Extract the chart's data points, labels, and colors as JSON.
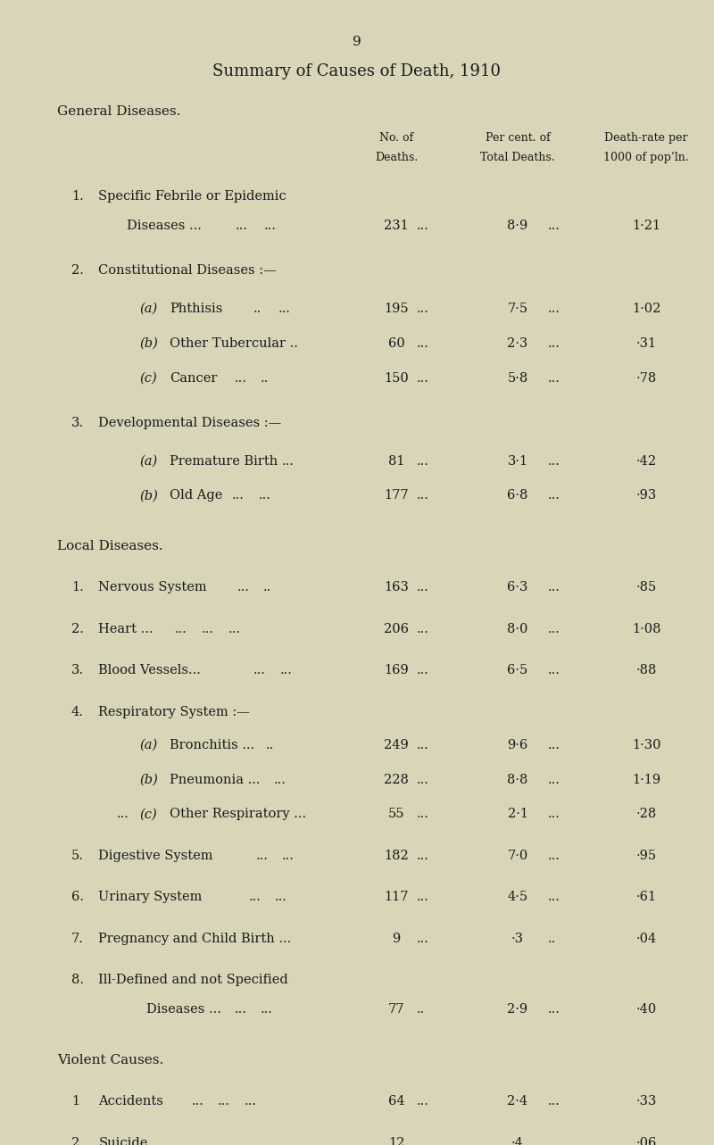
{
  "page_number": "9",
  "title": "Summary of Causes of Death, 1910",
  "bg_color": "#d8d5b8",
  "text_color": "#1a1a1a",
  "col1_header1": "No. of",
  "col1_header2": "Deaths.",
  "col2_header1": "Per cent. of",
  "col2_header2": "Total Deaths.",
  "col3_header1": "Death-rate per",
  "col3_header2": "1000 of pop’ln."
}
